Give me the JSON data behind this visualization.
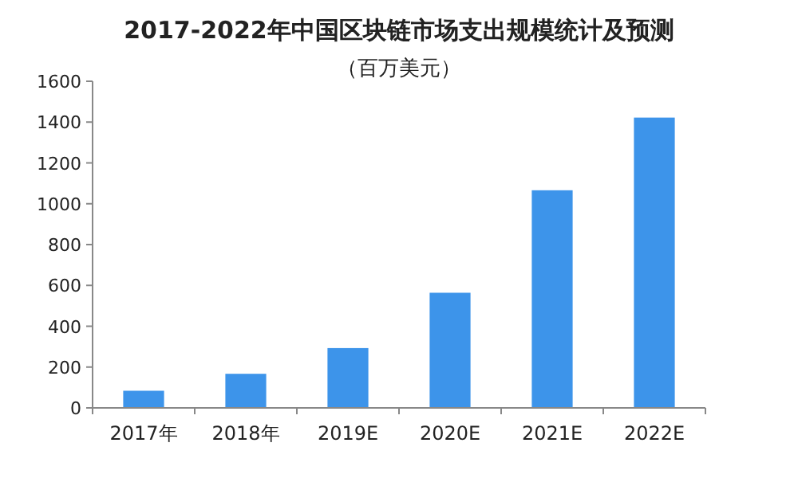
{
  "chart_data": {
    "type": "bar",
    "title": "2017-2022年中国区块链市场支出规模统计及预测",
    "subtitle": "（百万美元）",
    "categories": [
      "2017年",
      "2018年",
      "2019E",
      "2020E",
      "2021E",
      "2022E"
    ],
    "values": [
      84,
      167,
      293,
      564,
      1066,
      1422
    ],
    "color": "#3d94ea",
    "ylim": [
      0,
      1600
    ],
    "yticks": [
      0,
      200,
      400,
      600,
      800,
      1000,
      1200,
      1400,
      1600
    ]
  }
}
